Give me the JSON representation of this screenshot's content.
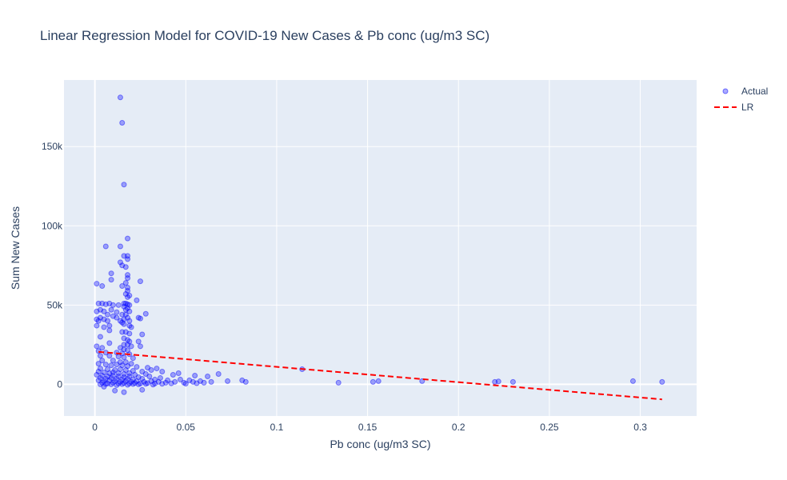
{
  "chart_data": {
    "type": "scatter",
    "title": "Linear Regression Model for COVID-19 New Cases & Pb conc (ug/m3 SC)",
    "xlabel": "Pb conc (ug/m3 SC)",
    "ylabel": "Sum New Cases",
    "xlim": [
      -0.017,
      0.331
    ],
    "ylim": [
      -20000,
      192000
    ],
    "x_ticks": [
      0,
      0.05,
      0.1,
      0.15,
      0.2,
      0.25,
      0.3
    ],
    "x_tick_labels": [
      "0",
      "0.05",
      "0.1",
      "0.15",
      "0.2",
      "0.25",
      "0.3"
    ],
    "y_ticks": [
      0,
      50000,
      100000,
      150000
    ],
    "y_tick_labels": [
      "0",
      "50k",
      "100k",
      "150k"
    ],
    "grid": true,
    "legend_position": "top-right",
    "series": [
      {
        "name": "Actual",
        "mode": "markers",
        "color": "#0000ff",
        "points": [
          [
            0.014,
            181000
          ],
          [
            0.015,
            165000
          ],
          [
            0.016,
            126000
          ],
          [
            0.006,
            87000
          ],
          [
            0.014,
            87000
          ],
          [
            0.018,
            92000
          ],
          [
            0.016,
            81000
          ],
          [
            0.018,
            81000
          ],
          [
            0.018,
            79000
          ],
          [
            0.014,
            77000
          ],
          [
            0.015,
            75000
          ],
          [
            0.017,
            74000
          ],
          [
            0.009,
            70000
          ],
          [
            0.018,
            69000
          ],
          [
            0.018,
            67000
          ],
          [
            0.009,
            66000
          ],
          [
            0.025,
            65000
          ],
          [
            0.017,
            64000
          ],
          [
            0.001,
            63500
          ],
          [
            0.004,
            62000
          ],
          [
            0.015,
            62000
          ],
          [
            0.018,
            61000
          ],
          [
            0.018,
            59000
          ],
          [
            0.017,
            57000
          ],
          [
            0.019,
            56000
          ],
          [
            0.018,
            55000
          ],
          [
            0.023,
            53000
          ],
          [
            0.002,
            51000
          ],
          [
            0.004,
            51000
          ],
          [
            0.006,
            50500
          ],
          [
            0.008,
            51000
          ],
          [
            0.01,
            50000
          ],
          [
            0.013,
            50000
          ],
          [
            0.016,
            51000
          ],
          [
            0.017,
            51000
          ],
          [
            0.018,
            50500
          ],
          [
            0.019,
            50000
          ],
          [
            0.016,
            49000
          ],
          [
            0.018,
            48000
          ],
          [
            0.017,
            47000
          ],
          [
            0.019,
            46000
          ],
          [
            0.001,
            46000
          ],
          [
            0.003,
            47000
          ],
          [
            0.005,
            46000
          ],
          [
            0.009,
            47000
          ],
          [
            0.012,
            45500
          ],
          [
            0.015,
            44000
          ],
          [
            0.017,
            44000
          ],
          [
            0.018,
            42000
          ],
          [
            0.007,
            44000
          ],
          [
            0.01,
            43000
          ],
          [
            0.001,
            41000
          ],
          [
            0.002,
            40000
          ],
          [
            0.003,
            42000
          ],
          [
            0.005,
            41000
          ],
          [
            0.007,
            40000
          ],
          [
            0.012,
            42000
          ],
          [
            0.014,
            40000
          ],
          [
            0.016,
            41000
          ],
          [
            0.019,
            40000
          ],
          [
            0.015,
            39000
          ],
          [
            0.016,
            38000
          ],
          [
            0.019,
            37000
          ],
          [
            0.02,
            36000
          ],
          [
            0.001,
            37000
          ],
          [
            0.005,
            36000
          ],
          [
            0.008,
            37000
          ],
          [
            0.025,
            41500
          ],
          [
            0.028,
            44500
          ],
          [
            0.024,
            42000
          ],
          [
            0.008,
            34000
          ],
          [
            0.015,
            33000
          ],
          [
            0.017,
            33000
          ],
          [
            0.019,
            32000
          ],
          [
            0.026,
            31500
          ],
          [
            0.003,
            30000
          ],
          [
            0.016,
            29000
          ],
          [
            0.018,
            28000
          ],
          [
            0.019,
            27000
          ],
          [
            0.024,
            27000
          ],
          [
            0.008,
            26000
          ],
          [
            0.016,
            25000
          ],
          [
            0.018,
            25000
          ],
          [
            0.02,
            24000
          ],
          [
            0.025,
            24000
          ],
          [
            0.001,
            24000
          ],
          [
            0.004,
            23000
          ],
          [
            0.014,
            23000
          ],
          [
            0.016,
            22000
          ],
          [
            0.018,
            21500
          ],
          [
            0.002,
            21000
          ],
          [
            0.006,
            20000
          ],
          [
            0.012,
            20000
          ],
          [
            0.015,
            19500
          ],
          [
            0.019,
            19000
          ],
          [
            0.003,
            18000
          ],
          [
            0.008,
            18000
          ],
          [
            0.013,
            17500
          ],
          [
            0.016,
            17000
          ],
          [
            0.021,
            16500
          ],
          [
            0.004,
            15000
          ],
          [
            0.01,
            15000
          ],
          [
            0.014,
            14000
          ],
          [
            0.017,
            14000
          ],
          [
            0.02,
            13000
          ],
          [
            0.002,
            13000
          ],
          [
            0.006,
            12500
          ],
          [
            0.009,
            12000
          ],
          [
            0.012,
            12500
          ],
          [
            0.015,
            12000
          ],
          [
            0.018,
            11500
          ],
          [
            0.023,
            11000
          ],
          [
            0.029,
            10500
          ],
          [
            0.034,
            10000
          ],
          [
            0.003,
            10000
          ],
          [
            0.007,
            9500
          ],
          [
            0.011,
            9000
          ],
          [
            0.014,
            9500
          ],
          [
            0.017,
            9000
          ],
          [
            0.021,
            8500
          ],
          [
            0.026,
            8000
          ],
          [
            0.031,
            9000
          ],
          [
            0.037,
            8000
          ],
          [
            0.043,
            6000
          ],
          [
            0.046,
            7000
          ],
          [
            0.055,
            5500
          ],
          [
            0.062,
            5000
          ],
          [
            0.068,
            6500
          ],
          [
            0.002,
            8000
          ],
          [
            0.005,
            7500
          ],
          [
            0.008,
            7000
          ],
          [
            0.01,
            7500
          ],
          [
            0.013,
            7000
          ],
          [
            0.016,
            6500
          ],
          [
            0.019,
            7000
          ],
          [
            0.022,
            6000
          ],
          [
            0.028,
            6500
          ],
          [
            0.001,
            6000
          ],
          [
            0.004,
            5500
          ],
          [
            0.007,
            5000
          ],
          [
            0.01,
            5500
          ],
          [
            0.013,
            5000
          ],
          [
            0.016,
            4500
          ],
          [
            0.019,
            5000
          ],
          [
            0.024,
            4500
          ],
          [
            0.03,
            5000
          ],
          [
            0.036,
            4000
          ],
          [
            0.003,
            4000
          ],
          [
            0.006,
            3500
          ],
          [
            0.009,
            4000
          ],
          [
            0.012,
            3500
          ],
          [
            0.015,
            3000
          ],
          [
            0.018,
            3500
          ],
          [
            0.021,
            3000
          ],
          [
            0.026,
            3500
          ],
          [
            0.033,
            3000
          ],
          [
            0.04,
            2500
          ],
          [
            0.047,
            3000
          ],
          [
            0.052,
            2500
          ],
          [
            0.058,
            2000
          ],
          [
            0.002,
            2500
          ],
          [
            0.005,
            2000
          ],
          [
            0.008,
            2500
          ],
          [
            0.011,
            2000
          ],
          [
            0.014,
            1500
          ],
          [
            0.017,
            2000
          ],
          [
            0.02,
            1500
          ],
          [
            0.023,
            2000
          ],
          [
            0.027,
            1500
          ],
          [
            0.031,
            2000
          ],
          [
            0.035,
            1500
          ],
          [
            0.039,
            1000
          ],
          [
            0.044,
            1500
          ],
          [
            0.049,
            1000
          ],
          [
            0.054,
            1500
          ],
          [
            0.06,
            1000
          ],
          [
            0.064,
            1500
          ],
          [
            0.004,
            1000
          ],
          [
            0.007,
            500
          ],
          [
            0.01,
            1000
          ],
          [
            0.013,
            500
          ],
          [
            0.016,
            800
          ],
          [
            0.019,
            500
          ],
          [
            0.022,
            800
          ],
          [
            0.025,
            500
          ],
          [
            0.029,
            800
          ],
          [
            0.033,
            500
          ],
          [
            0.037,
            300
          ],
          [
            0.042,
            600
          ],
          [
            0.05,
            400
          ],
          [
            0.056,
            700
          ],
          [
            0.003,
            0
          ],
          [
            0.006,
            200
          ],
          [
            0.009,
            0
          ],
          [
            0.012,
            -500
          ],
          [
            0.015,
            100
          ],
          [
            0.018,
            -300
          ],
          [
            0.021,
            200
          ],
          [
            0.024,
            0
          ],
          [
            0.028,
            300
          ],
          [
            0.032,
            -200
          ],
          [
            0.011,
            -4000
          ],
          [
            0.016,
            -5000
          ],
          [
            0.026,
            -3500
          ],
          [
            0.005,
            -1500
          ],
          [
            0.073,
            2000
          ],
          [
            0.081,
            2500
          ],
          [
            0.083,
            1500
          ],
          [
            0.114,
            9500
          ],
          [
            0.134,
            1000
          ],
          [
            0.153,
            1500
          ],
          [
            0.156,
            2000
          ],
          [
            0.18,
            2000
          ],
          [
            0.22,
            1500
          ],
          [
            0.222,
            1800
          ],
          [
            0.23,
            1500
          ],
          [
            0.296,
            2000
          ],
          [
            0.312,
            1500
          ]
        ]
      },
      {
        "name": "LR",
        "mode": "lines",
        "color": "#ff0000",
        "dash": "dash",
        "points": [
          [
            0.002,
            20500
          ],
          [
            0.312,
            -9500
          ]
        ]
      }
    ]
  }
}
